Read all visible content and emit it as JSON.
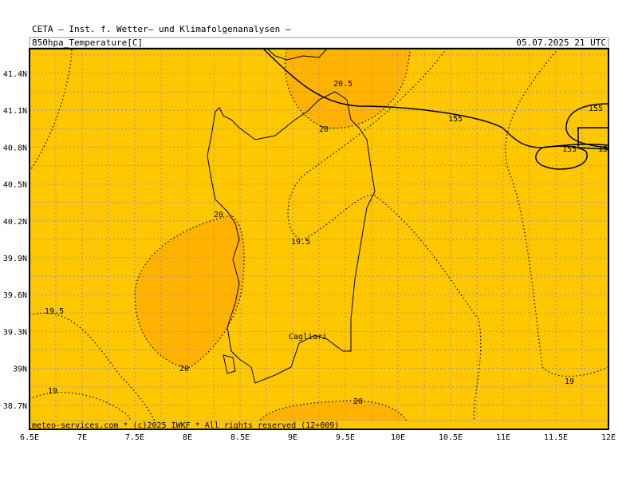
{
  "header": {
    "source": "CETA — Inst. f. Wetter— und Klimafolgenanalysen —",
    "field": "850hpa_Temperature[C]",
    "valid": "05.07.2025 21 UTC"
  },
  "footer": "meteo-services.com * (c)2025 IWKF * All rights reserved (12+009)",
  "x_ticks": [
    "6.5E",
    "7E",
    "7.5E",
    "8E",
    "8.5E",
    "9E",
    "9.5E",
    "10E",
    "10.5E",
    "11E",
    "11.5E",
    "12E"
  ],
  "y_ticks": [
    "41.4N",
    "41.1N",
    "40.8N",
    "40.5N",
    "40.2N",
    "39.9N",
    "39.6N",
    "39.3N",
    "39N",
    "38.7N"
  ],
  "city": "Cagliari",
  "contour_labels": [
    "20.5",
    "20",
    "155",
    "155",
    "155",
    "15",
    "20",
    "19.5",
    "19.5",
    "20",
    "19",
    "19",
    "20"
  ]
}
